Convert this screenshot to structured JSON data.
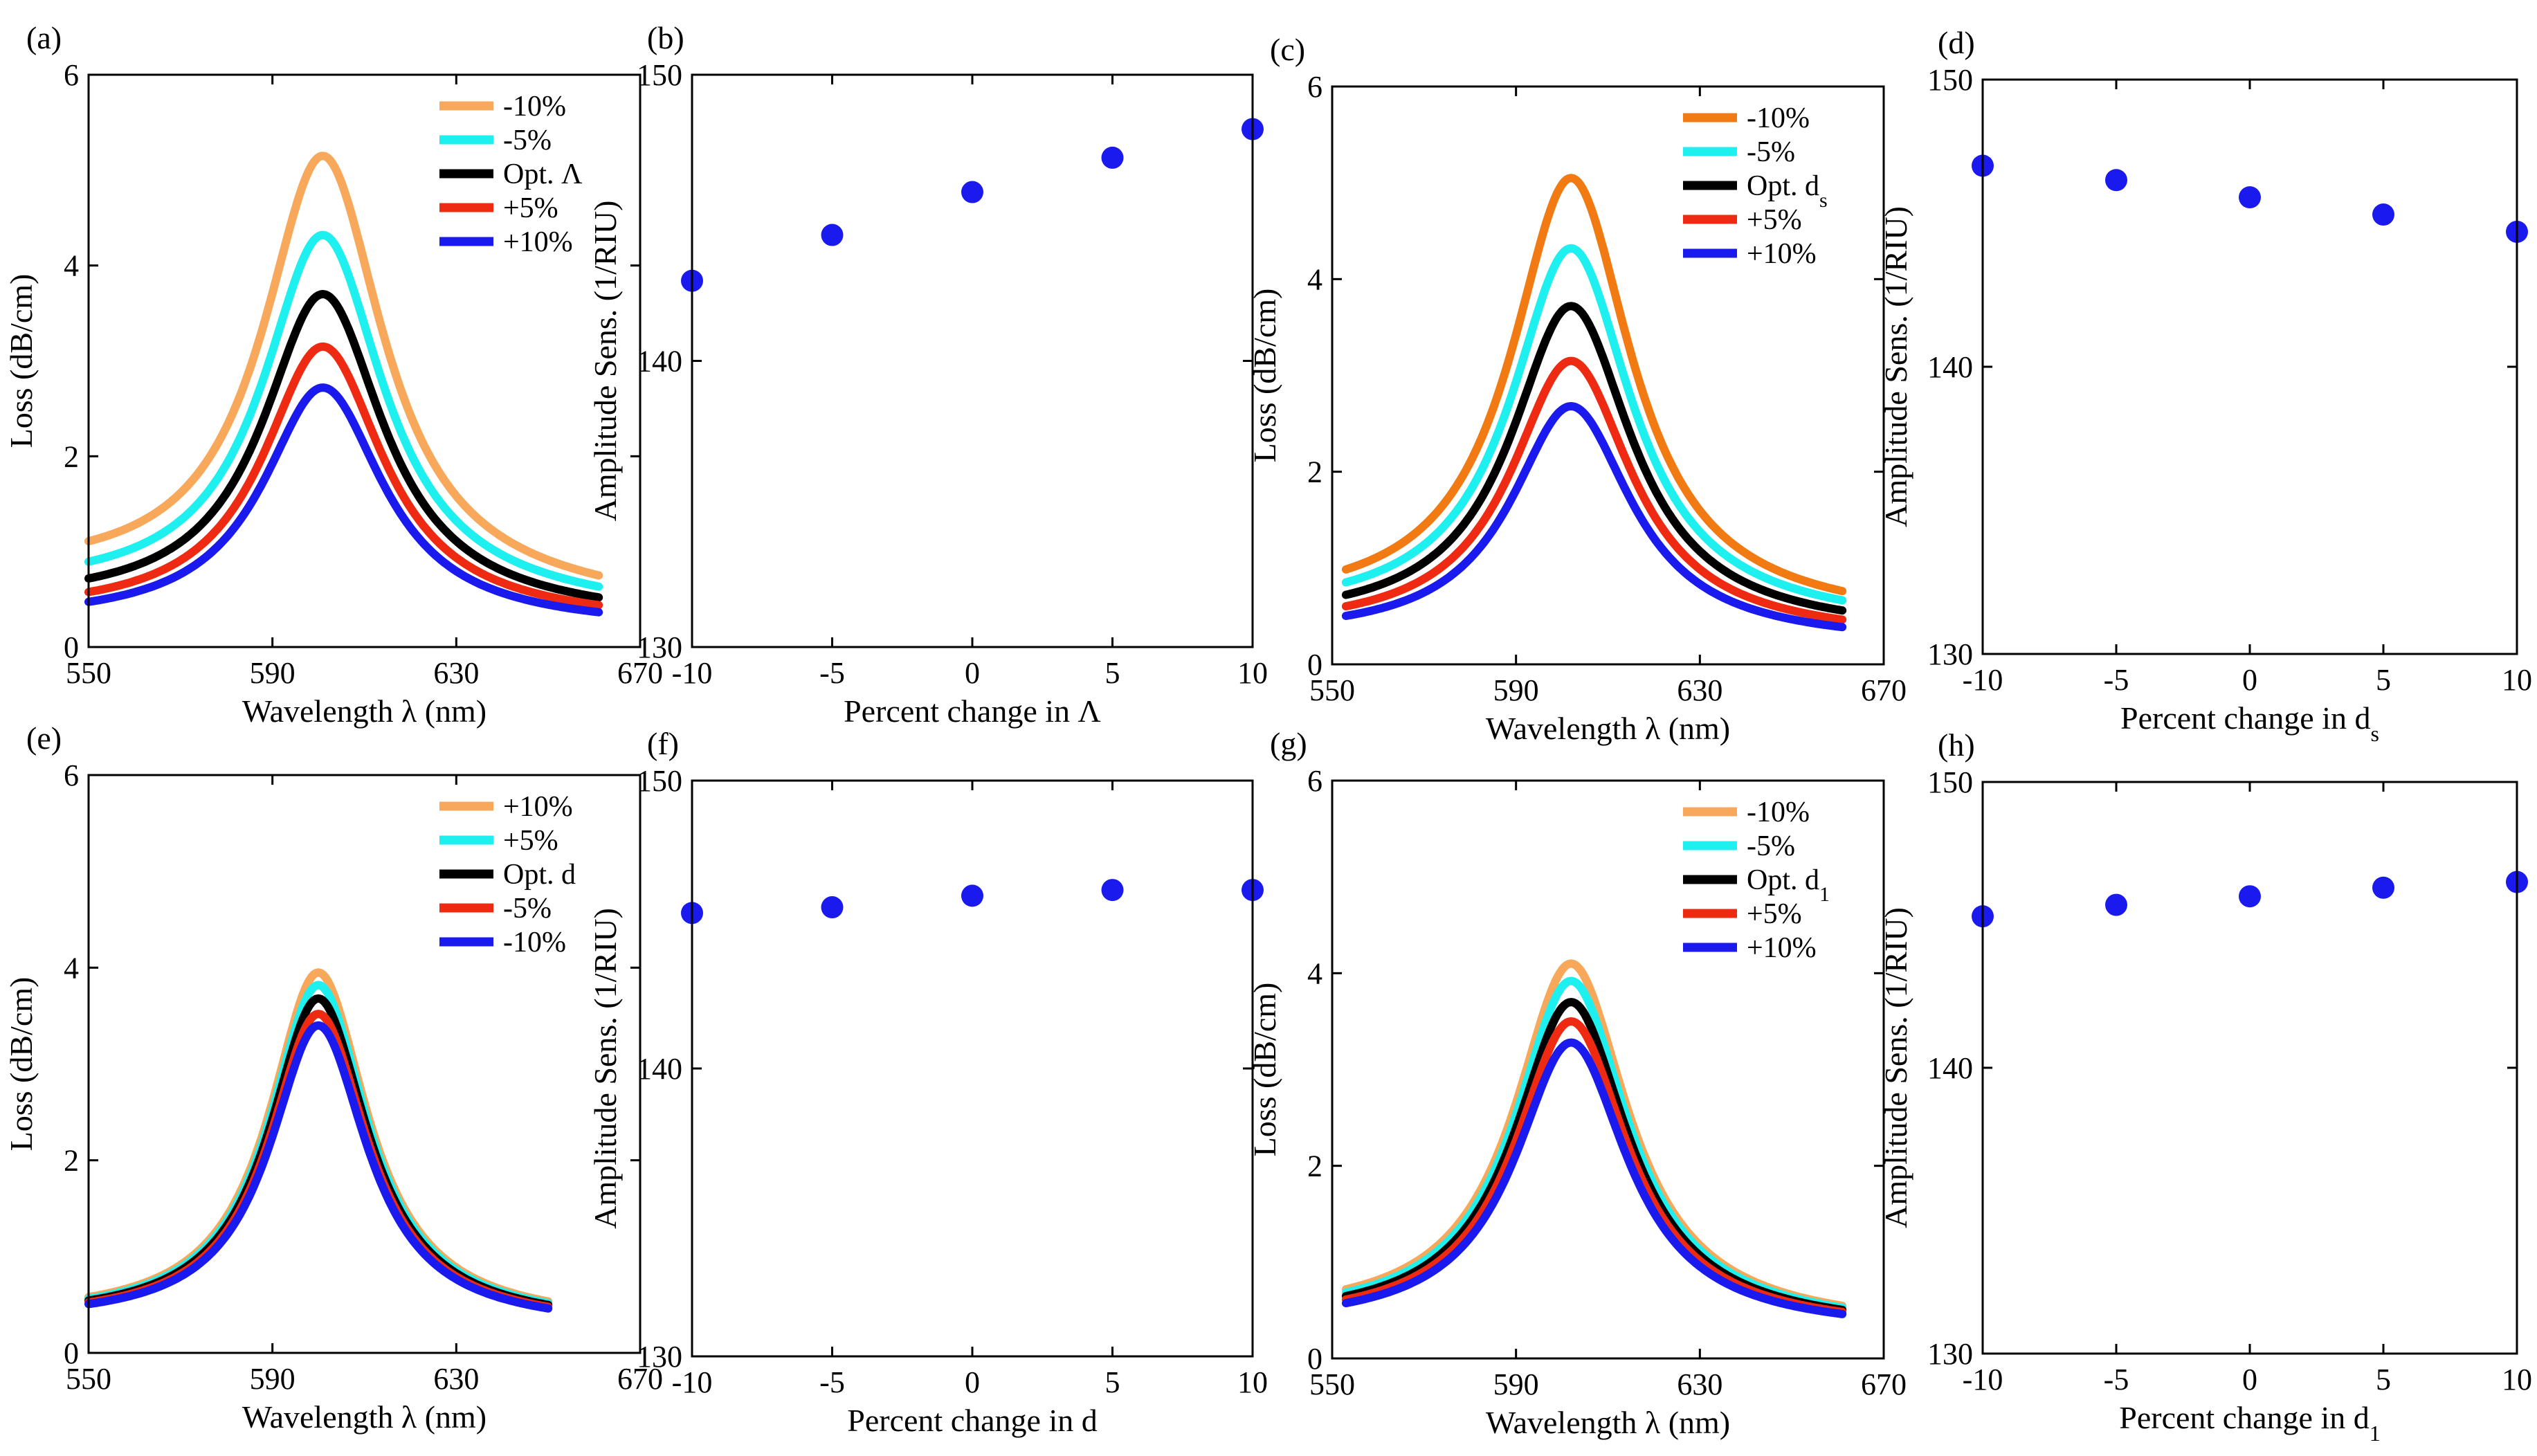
{
  "figure": {
    "background": "#ffffff"
  },
  "chart_data": [
    {
      "id": "a",
      "label": "(a)",
      "type": "line",
      "xlabel": "Wavelength λ (nm)",
      "ylabel": "Loss (dB/cm)",
      "xlim": [
        550,
        670
      ],
      "ylim": [
        0,
        6
      ],
      "xticks": [
        550,
        590,
        630,
        670
      ],
      "yticks": [
        0,
        2,
        4,
        6
      ],
      "x_range": [
        550,
        661
      ],
      "legend_placement": "top-right",
      "series": [
        {
          "name": "-10%",
          "color": "#f7a85b",
          "peak_x": 601,
          "peak": 5.15,
          "width": 16,
          "base_left": 0.7,
          "base_right": 0.45
        },
        {
          "name": "-5%",
          "color": "#1ef0f0",
          "peak_x": 601,
          "peak": 4.32,
          "width": 16,
          "base_left": 0.55,
          "base_right": 0.38
        },
        {
          "name": "Opt. Λ",
          "color": "#000000",
          "peak_x": 601,
          "peak": 3.7,
          "width": 16,
          "base_left": 0.42,
          "base_right": 0.3
        },
        {
          "name": "+5%",
          "color": "#ee2a12",
          "peak_x": 601,
          "peak": 3.15,
          "width": 16,
          "base_left": 0.32,
          "base_right": 0.25
        },
        {
          "name": "+10%",
          "color": "#1a1aee",
          "peak_x": 601,
          "peak": 2.72,
          "width": 16,
          "base_left": 0.25,
          "base_right": 0.2
        }
      ]
    },
    {
      "id": "b",
      "label": "(b)",
      "type": "scatter",
      "xlabel": "Percent change in Λ",
      "ylabel": "Amplitude Sens. (1/RIU)",
      "xlim": [
        -10,
        10
      ],
      "ylim": [
        130,
        150
      ],
      "xticks": [
        -10,
        -5,
        0,
        5,
        10
      ],
      "yticks": [
        130,
        140,
        150
      ],
      "color": "#1a1aee",
      "x": [
        -10,
        -5,
        0,
        5,
        10
      ],
      "y": [
        142.8,
        144.4,
        145.9,
        147.1,
        148.1
      ]
    },
    {
      "id": "c",
      "label": "(c)",
      "type": "line",
      "xlabel": "Wavelength λ (nm)",
      "ylabel": "Loss (dB/cm)",
      "xlim": [
        550,
        670
      ],
      "ylim": [
        0,
        6
      ],
      "xticks": [
        550,
        590,
        630,
        670
      ],
      "yticks": [
        0,
        2,
        4,
        6
      ],
      "x_range": [
        553,
        661
      ],
      "legend_placement": "top-right",
      "series": [
        {
          "name": "-10%",
          "color": "#f27a12",
          "peak_x": 602,
          "peak": 5.05,
          "width": 16,
          "base_left": 0.55,
          "base_right": 0.45
        },
        {
          "name": "-5%",
          "color": "#1ef0f0",
          "peak_x": 602,
          "peak": 4.32,
          "width": 16,
          "base_left": 0.48,
          "base_right": 0.4
        },
        {
          "name": "Opt. d",
          "name_sub": "s",
          "color": "#000000",
          "peak_x": 602,
          "peak": 3.72,
          "width": 16,
          "base_left": 0.4,
          "base_right": 0.33
        },
        {
          "name": "+5%",
          "color": "#ee2a12",
          "peak_x": 602,
          "peak": 3.15,
          "width": 16,
          "base_left": 0.33,
          "base_right": 0.27
        },
        {
          "name": "+10%",
          "color": "#1a1aee",
          "peak_x": 602,
          "peak": 2.68,
          "width": 16,
          "base_left": 0.27,
          "base_right": 0.22
        }
      ]
    },
    {
      "id": "d",
      "label": "(d)",
      "type": "scatter",
      "xlabel": "Percent change in d",
      "xlabel_sub": "s",
      "ylabel": "Amplitude Sens. (1/RIU)",
      "xlim": [
        -10,
        10
      ],
      "ylim": [
        130,
        150
      ],
      "xticks": [
        -10,
        -5,
        0,
        5,
        10
      ],
      "yticks": [
        130,
        140,
        150
      ],
      "color": "#1a1aee",
      "x": [
        -10,
        -5,
        0,
        5,
        10
      ],
      "y": [
        147.0,
        146.5,
        145.9,
        145.3,
        144.7
      ]
    },
    {
      "id": "e",
      "label": "(e)",
      "type": "line",
      "xlabel": "Wavelength λ (nm)",
      "ylabel": "Loss (dB/cm)",
      "xlim": [
        550,
        670
      ],
      "ylim": [
        0,
        6
      ],
      "xticks": [
        550,
        590,
        630,
        670
      ],
      "yticks": [
        0,
        2,
        4,
        6
      ],
      "x_range": [
        550,
        650
      ],
      "legend_placement": "top-right",
      "series": [
        {
          "name": "+10%",
          "color": "#f7a85b",
          "peak_x": 600,
          "peak": 3.95,
          "width": 13,
          "base_left": 0.35,
          "base_right": 0.3
        },
        {
          "name": "+5%",
          "color": "#1ef0f0",
          "peak_x": 600,
          "peak": 3.82,
          "width": 13,
          "base_left": 0.34,
          "base_right": 0.29
        },
        {
          "name": "Opt. d",
          "color": "#000000",
          "peak_x": 600,
          "peak": 3.68,
          "width": 13,
          "base_left": 0.33,
          "base_right": 0.28
        },
        {
          "name": "-5%",
          "color": "#ee2a12",
          "peak_x": 600,
          "peak": 3.52,
          "width": 13,
          "base_left": 0.32,
          "base_right": 0.27
        },
        {
          "name": "-10%",
          "color": "#1a1aee",
          "peak_x": 600,
          "peak": 3.4,
          "width": 13,
          "base_left": 0.31,
          "base_right": 0.26
        }
      ]
    },
    {
      "id": "f",
      "label": "(f)",
      "type": "scatter",
      "xlabel": "Percent change in d",
      "ylabel": "Amplitude Sens. (1/RIU)",
      "xlim": [
        -10,
        10
      ],
      "ylim": [
        130,
        150
      ],
      "xticks": [
        -10,
        -5,
        0,
        5,
        10
      ],
      "yticks": [
        130,
        140,
        150
      ],
      "color": "#1a1aee",
      "x": [
        -10,
        -5,
        0,
        5,
        10
      ],
      "y": [
        145.4,
        145.6,
        146.0,
        146.2,
        146.2
      ]
    },
    {
      "id": "g",
      "label": "(g)",
      "type": "line",
      "xlabel": "Wavelength λ (nm)",
      "ylabel": "Loss (dB/cm)",
      "xlim": [
        550,
        670
      ],
      "ylim": [
        0,
        6
      ],
      "xticks": [
        550,
        590,
        630,
        670
      ],
      "yticks": [
        0,
        2,
        4,
        6
      ],
      "x_range": [
        553,
        661
      ],
      "legend_placement": "top-right",
      "series": [
        {
          "name": "-10%",
          "color": "#f7a85b",
          "peak_x": 602,
          "peak": 4.1,
          "width": 15,
          "base_left": 0.4,
          "base_right": 0.32
        },
        {
          "name": "-5%",
          "color": "#1ef0f0",
          "peak_x": 602,
          "peak": 3.92,
          "width": 15,
          "base_left": 0.38,
          "base_right": 0.31
        },
        {
          "name": "Opt. d",
          "name_sub": "1",
          "color": "#000000",
          "peak_x": 602,
          "peak": 3.7,
          "width": 15,
          "base_left": 0.36,
          "base_right": 0.3
        },
        {
          "name": "+5%",
          "color": "#ee2a12",
          "peak_x": 602,
          "peak": 3.5,
          "width": 15,
          "base_left": 0.34,
          "base_right": 0.29
        },
        {
          "name": "+10%",
          "color": "#1a1aee",
          "peak_x": 602,
          "peak": 3.28,
          "width": 15,
          "base_left": 0.32,
          "base_right": 0.28
        }
      ]
    },
    {
      "id": "h",
      "label": "(h)",
      "type": "scatter",
      "xlabel": "Percent change in d",
      "xlabel_sub": "1",
      "ylabel": "Amplitude Sens. (1/RIU)",
      "xlim": [
        -10,
        10
      ],
      "ylim": [
        130,
        150
      ],
      "xticks": [
        -10,
        -5,
        0,
        5,
        10
      ],
      "yticks": [
        130,
        140,
        150
      ],
      "color": "#1a1aee",
      "x": [
        -10,
        -5,
        0,
        5,
        10
      ],
      "y": [
        145.3,
        145.7,
        146.0,
        146.3,
        146.5
      ]
    }
  ]
}
